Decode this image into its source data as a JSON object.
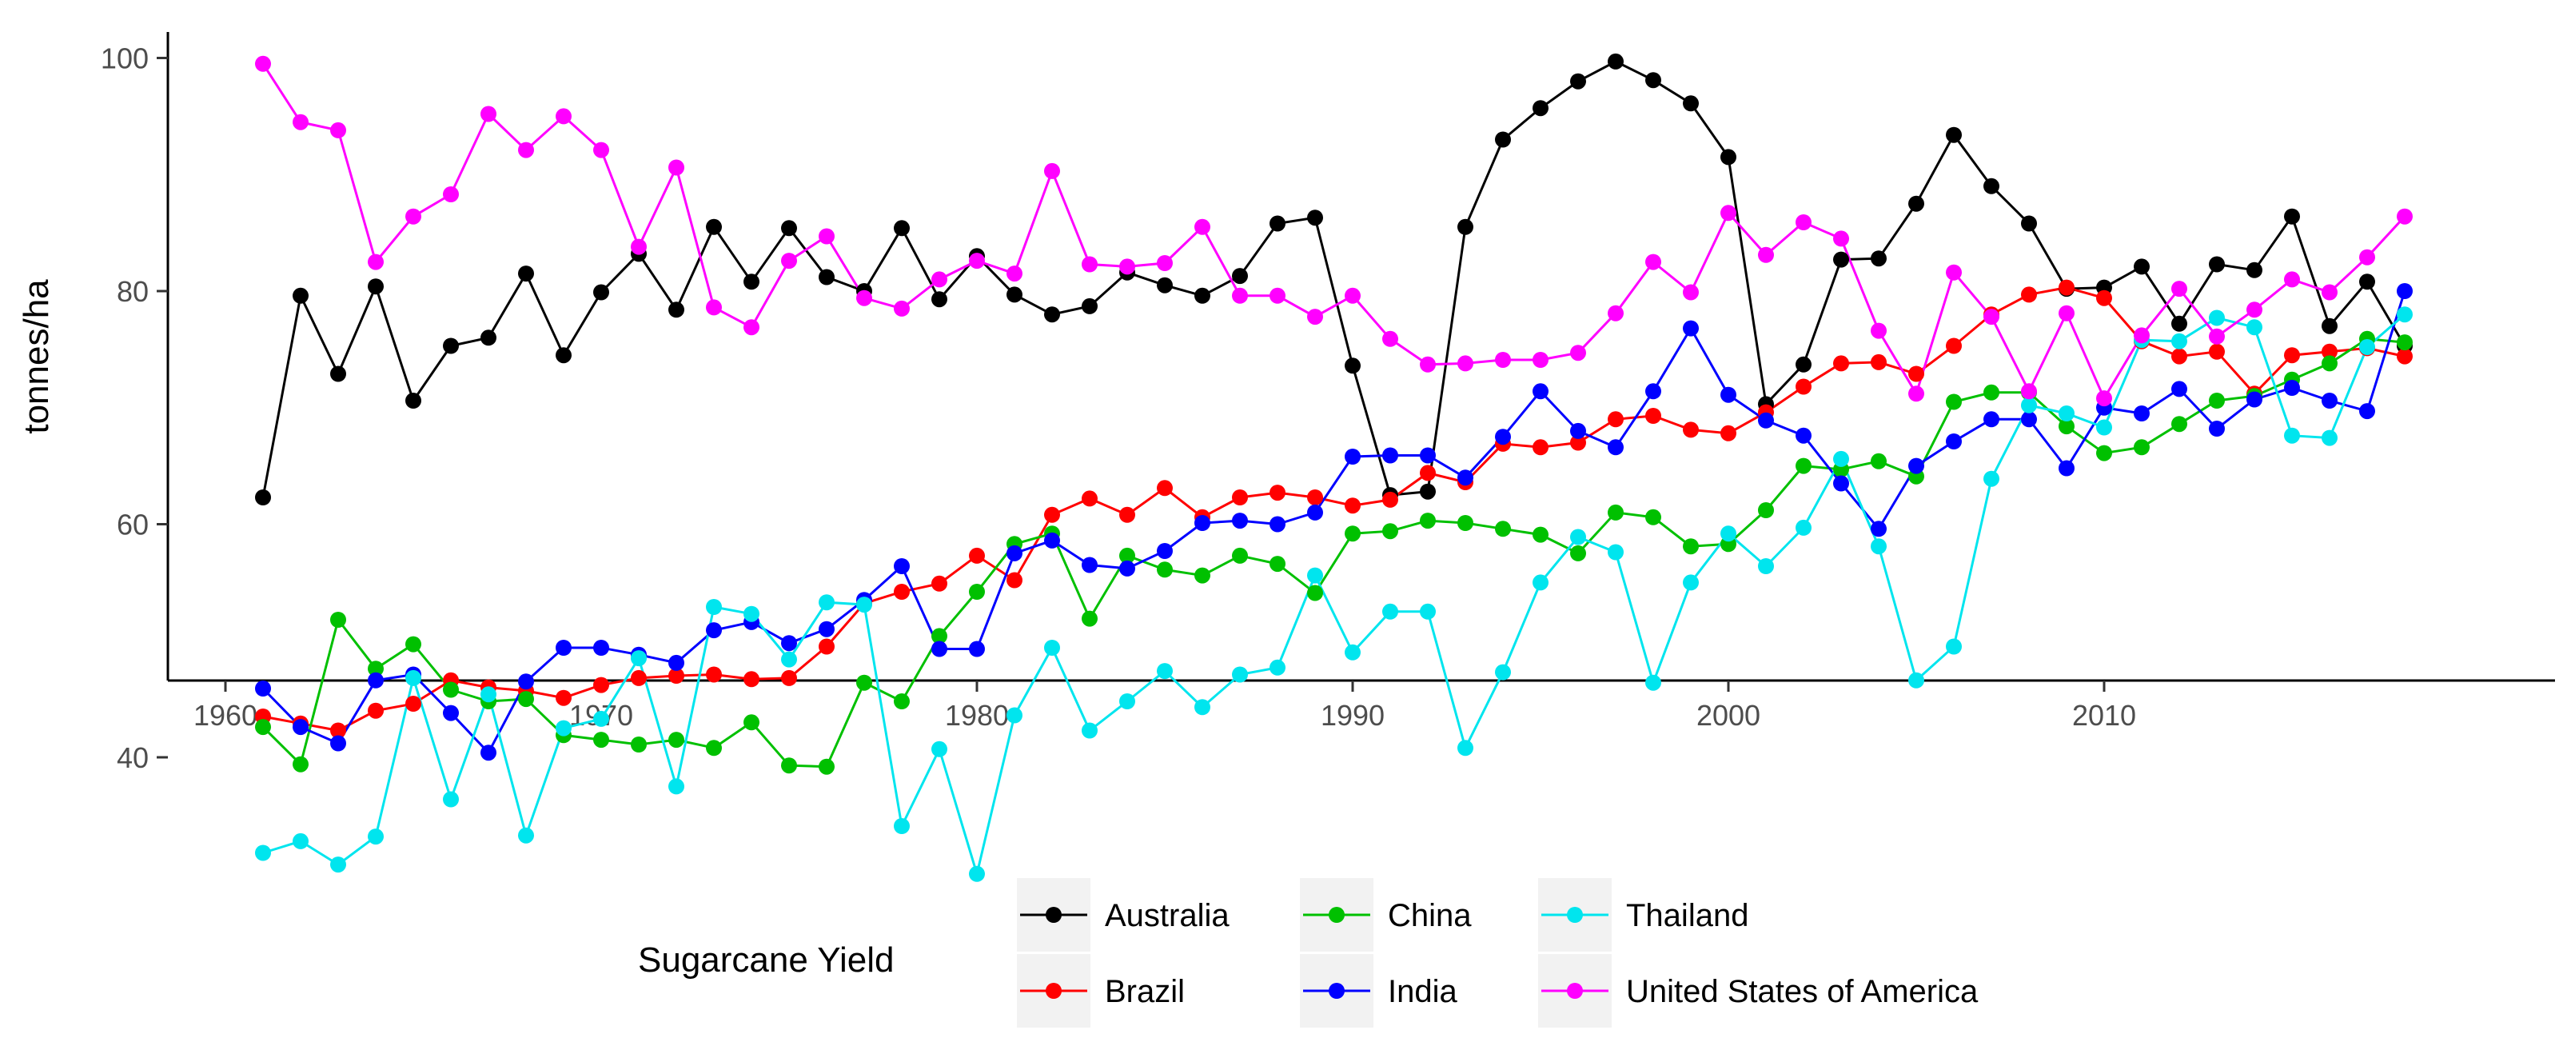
{
  "chart_data": {
    "type": "line",
    "title": "",
    "xlabel": "",
    "ylabel": "tonnes/ha",
    "xlim": [
      1959,
      2021
    ],
    "ylim": [
      27,
      105
    ],
    "x_ticks": [
      1960,
      1970,
      1980,
      1990,
      2000,
      2010
    ],
    "y_ticks": [
      40,
      60,
      80,
      100
    ],
    "grid": false,
    "legend": {
      "title": "Sugarcane Yield",
      "position": "bottom"
    },
    "x": [
      1961,
      1962,
      1963,
      1964,
      1965,
      1966,
      1967,
      1968,
      1969,
      1970,
      1971,
      1972,
      1973,
      1974,
      1975,
      1976,
      1977,
      1978,
      1979,
      1980,
      1981,
      1982,
      1983,
      1984,
      1985,
      1986,
      1987,
      1988,
      1989,
      1990,
      1991,
      1992,
      1993,
      1994,
      1995,
      1996,
      1997,
      1998,
      1999,
      2000,
      2001,
      2002,
      2003,
      2004,
      2005,
      2006,
      2007,
      2008,
      2009,
      2010,
      2011,
      2012,
      2013,
      2014,
      2015,
      2016,
      2017,
      2018
    ],
    "series": [
      {
        "name": "Australia",
        "color": "#000000",
        "values": [
          62.3,
          79.6,
          72.9,
          80.4,
          70.6,
          75.3,
          76.0,
          81.5,
          74.5,
          79.9,
          83.2,
          78.4,
          85.5,
          80.8,
          85.4,
          81.2,
          80.0,
          85.4,
          79.3,
          83.0,
          79.7,
          78.0,
          78.7,
          81.6,
          80.5,
          79.6,
          81.3,
          85.8,
          86.3,
          73.6,
          62.5,
          62.8,
          85.5,
          93.0,
          95.7,
          98.0,
          99.7,
          98.1,
          96.1,
          91.5,
          70.3,
          73.7,
          82.7,
          82.8,
          87.5,
          93.4,
          89.0,
          85.8,
          80.2,
          80.3,
          82.1,
          77.2,
          82.3,
          81.8,
          86.4,
          77.0,
          80.8,
          75.3
        ]
      },
      {
        "name": "Brazil",
        "color": "#ff0000",
        "values": [
          43.5,
          42.9,
          42.3,
          44.0,
          44.6,
          46.6,
          46.0,
          45.7,
          45.1,
          46.2,
          46.8,
          47.0,
          47.1,
          46.7,
          46.8,
          49.5,
          53.2,
          54.2,
          54.9,
          57.3,
          55.2,
          60.8,
          62.2,
          60.8,
          63.1,
          60.6,
          62.3,
          62.7,
          62.3,
          61.6,
          62.1,
          64.4,
          63.6,
          66.9,
          66.6,
          67.0,
          69.0,
          69.3,
          68.1,
          67.8,
          69.6,
          71.8,
          73.8,
          73.9,
          72.9,
          75.3,
          78.0,
          79.7,
          80.3,
          79.4,
          75.7,
          74.4,
          74.8,
          71.2,
          74.5,
          74.8,
          75.1,
          74.4
        ]
      },
      {
        "name": "China",
        "color": "#00c000",
        "values": [
          42.6,
          39.4,
          51.8,
          47.6,
          49.7,
          45.8,
          44.8,
          45.0,
          41.9,
          41.5,
          41.1,
          41.5,
          40.8,
          43.0,
          39.3,
          39.2,
          46.4,
          44.8,
          50.4,
          54.2,
          58.3,
          59.2,
          51.9,
          57.3,
          56.1,
          55.6,
          57.3,
          56.6,
          54.1,
          59.2,
          59.4,
          60.3,
          60.1,
          59.6,
          59.1,
          57.5,
          61.0,
          60.6,
          58.1,
          58.3,
          61.2,
          65.0,
          64.7,
          65.4,
          64.1,
          70.5,
          71.3,
          71.3,
          68.4,
          66.1,
          66.6,
          68.6,
          70.6,
          71.0,
          72.4,
          73.8,
          75.9,
          75.6
        ]
      },
      {
        "name": "India",
        "color": "#0000ff",
        "values": [
          45.9,
          42.6,
          41.2,
          46.6,
          47.1,
          43.8,
          40.4,
          46.5,
          49.4,
          49.4,
          48.8,
          48.1,
          50.9,
          51.6,
          49.8,
          51.0,
          53.5,
          56.4,
          49.3,
          49.3,
          57.5,
          58.6,
          56.5,
          56.2,
          57.7,
          60.1,
          60.3,
          60.0,
          61.0,
          65.8,
          65.9,
          65.9,
          64.0,
          67.5,
          71.4,
          68.0,
          66.6,
          71.4,
          76.8,
          71.1,
          68.9,
          67.6,
          63.5,
          59.6,
          65.0,
          67.1,
          69.0,
          69.0,
          64.8,
          70.0,
          69.5,
          71.6,
          68.2,
          70.7,
          71.7,
          70.6,
          69.7,
          80.0
        ]
      },
      {
        "name": "Thailand",
        "color": "#00e5ee",
        "values": [
          31.8,
          32.8,
          30.8,
          33.2,
          46.8,
          36.4,
          45.4,
          33.3,
          42.5,
          43.3,
          48.5,
          37.5,
          52.9,
          52.3,
          48.4,
          53.3,
          53.1,
          34.1,
          40.7,
          30.0,
          43.6,
          49.4,
          42.3,
          44.8,
          47.4,
          44.3,
          47.1,
          47.7,
          55.6,
          49.0,
          52.5,
          52.5,
          40.8,
          47.3,
          55.0,
          58.9,
          57.6,
          46.4,
          55.0,
          59.2,
          56.4,
          59.7,
          65.6,
          58.1,
          46.6,
          49.5,
          63.9,
          70.2,
          69.5,
          68.3,
          75.8,
          75.7,
          77.7,
          76.9,
          67.6,
          67.4,
          75.2,
          78.0
        ]
      },
      {
        "name": "United States of America",
        "color": "#ff00ff",
        "values": [
          99.5,
          94.5,
          93.8,
          82.5,
          86.4,
          88.3,
          95.2,
          92.1,
          95.0,
          92.1,
          83.8,
          90.6,
          78.6,
          76.9,
          82.6,
          84.7,
          79.4,
          78.5,
          81.0,
          82.6,
          81.5,
          90.3,
          82.3,
          82.1,
          82.4,
          85.5,
          79.6,
          79.6,
          77.8,
          79.6,
          75.9,
          73.7,
          73.8,
          74.1,
          74.1,
          74.7,
          78.1,
          82.5,
          79.9,
          86.7,
          83.1,
          85.9,
          84.5,
          76.6,
          71.2,
          81.6,
          77.8,
          71.4,
          78.1,
          70.8,
          76.2,
          80.2,
          76.1,
          78.4,
          81.0,
          79.9,
          82.9,
          86.4
        ]
      }
    ]
  }
}
